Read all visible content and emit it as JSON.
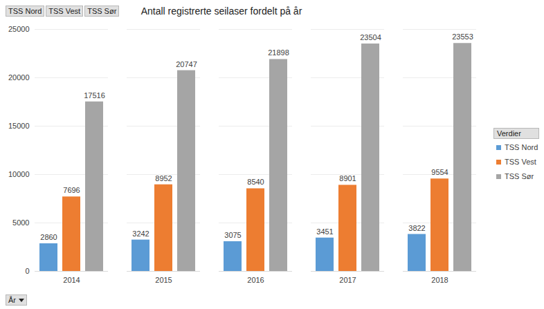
{
  "chart_data": {
    "type": "bar",
    "title": "Antall registrerte seilaser fordelt på år",
    "categories": [
      "2014",
      "2015",
      "2016",
      "2017",
      "2018"
    ],
    "series": [
      {
        "name": "TSS Nord",
        "color": "#5b9bd5",
        "values": [
          2860,
          3242,
          3075,
          3451,
          3822
        ]
      },
      {
        "name": "TSS Vest",
        "color": "#ed7d31",
        "values": [
          7696,
          8952,
          8540,
          8901,
          9554
        ]
      },
      {
        "name": "TSS Sør",
        "color": "#a5a5a5",
        "values": [
          17516,
          20747,
          21898,
          23504,
          23553
        ]
      }
    ],
    "xlabel": "År",
    "legend_title": "Verdier",
    "ylim": [
      0,
      25000
    ],
    "yticks": [
      0,
      5000,
      10000,
      15000,
      20000,
      25000
    ],
    "grid": true,
    "legend": "right",
    "data_labels": true
  }
}
